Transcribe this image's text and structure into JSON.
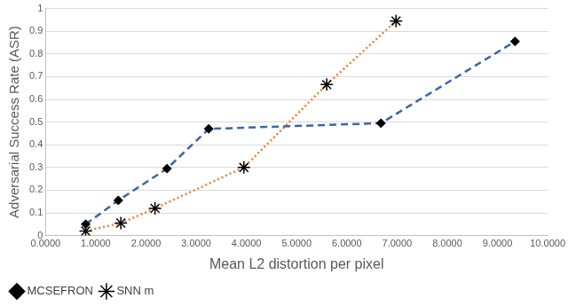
{
  "chart_data": {
    "type": "line",
    "x_label": "Mean L2 distortion per pixel",
    "y_label": "Adversarial Success Rate (ASR)",
    "xlim": [
      0,
      10
    ],
    "xticks": [
      {
        "value": 0,
        "label": "0.0000"
      },
      {
        "value": 1,
        "label": "1.0000"
      },
      {
        "value": 2,
        "label": "2.0000"
      },
      {
        "value": 3,
        "label": "3.0000"
      },
      {
        "value": 4,
        "label": "4.0000"
      },
      {
        "value": 5,
        "label": "5.0000"
      },
      {
        "value": 6,
        "label": "6.0000"
      },
      {
        "value": 7,
        "label": "7.0000"
      },
      {
        "value": 8,
        "label": "8.0000"
      },
      {
        "value": 9,
        "label": "9.0000"
      },
      {
        "value": 10,
        "label": "10.0000"
      }
    ],
    "ylim": [
      0,
      1
    ],
    "yticks": [
      0,
      0.1,
      0.2,
      0.3,
      0.4,
      0.5,
      0.6,
      0.7,
      0.8,
      0.9,
      1
    ],
    "grid": true,
    "legend": "bottom-left",
    "series": [
      {
        "name": "MCSEFRON",
        "color": "#3b64ad",
        "line_style": "dashed",
        "marker": "diamond",
        "x": [
          0.8,
          1.45,
          2.42,
          3.25,
          6.68,
          9.35
        ],
        "values": [
          0.05,
          0.155,
          0.295,
          0.47,
          0.495,
          0.855
        ]
      },
      {
        "name": "SNN m",
        "color": "#ed7d31",
        "line_style": "dotted",
        "marker": "star",
        "x": [
          0.8,
          1.5,
          2.18,
          3.95,
          5.6,
          6.98
        ],
        "values": [
          0.02,
          0.055,
          0.12,
          0.3,
          0.665,
          0.945
        ]
      }
    ]
  }
}
